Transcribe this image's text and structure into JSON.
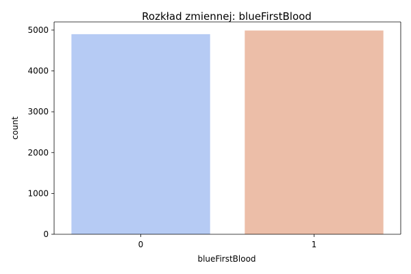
{
  "chart_data": {
    "type": "bar",
    "title": "Rozkład zmiennej: blueFirstBlood",
    "xlabel": "blueFirstBlood",
    "ylabel": "count",
    "categories": [
      "0",
      "1"
    ],
    "values": [
      4900,
      4990
    ],
    "ylim": [
      0,
      5200
    ],
    "yticks": [
      0,
      1000,
      2000,
      3000,
      4000,
      5000
    ],
    "colors": [
      "#b6cbf4",
      "#ecbea8"
    ],
    "grid": false,
    "legend": "none"
  }
}
